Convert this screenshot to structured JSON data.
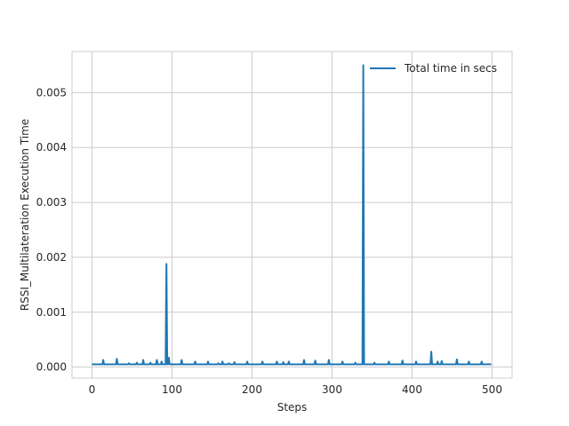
{
  "chart_data": {
    "type": "line",
    "title": "",
    "xlabel": "Steps",
    "ylabel": "RSSI_Multilateration Execution Time",
    "xlim": [
      -25,
      525
    ],
    "ylim": [
      -0.0002,
      0.00575
    ],
    "xticks": [
      0,
      100,
      200,
      300,
      400,
      500
    ],
    "xtick_labels": [
      "0",
      "100",
      "200",
      "300",
      "400",
      "500"
    ],
    "yticks": [
      0.0,
      0.001,
      0.002,
      0.003,
      0.004,
      0.005
    ],
    "ytick_labels": [
      "0.000",
      "0.001",
      "0.002",
      "0.003",
      "0.004",
      "0.005"
    ],
    "grid": true,
    "legend_position": "top-right",
    "colors": {
      "series": "#1f77b4",
      "grid": "#cccccc",
      "spine": "#cccccc"
    },
    "baseline": 5e-05,
    "n_points": 500,
    "spikes": [
      [
        14,
        0.00013
      ],
      [
        31,
        0.00015
      ],
      [
        46,
        7e-05
      ],
      [
        56,
        8e-05
      ],
      [
        64,
        0.00013
      ],
      [
        73,
        8e-05
      ],
      [
        81,
        0.00013
      ],
      [
        87,
        0.0001
      ],
      [
        93,
        0.00188
      ],
      [
        96,
        0.00017
      ],
      [
        112,
        0.00013
      ],
      [
        129,
        0.0001
      ],
      [
        145,
        0.0001
      ],
      [
        158,
        7e-05
      ],
      [
        163,
        0.0001
      ],
      [
        171,
        7e-05
      ],
      [
        178,
        9e-05
      ],
      [
        194,
        0.0001
      ],
      [
        213,
        0.0001
      ],
      [
        231,
        0.0001
      ],
      [
        239,
        9e-05
      ],
      [
        246,
        0.0001
      ],
      [
        265,
        0.00013
      ],
      [
        279,
        0.00012
      ],
      [
        296,
        0.00013
      ],
      [
        313,
        0.0001
      ],
      [
        329,
        8e-05
      ],
      [
        339,
        0.0055
      ],
      [
        353,
        8e-05
      ],
      [
        371,
        0.0001
      ],
      [
        388,
        0.00012
      ],
      [
        405,
        0.0001
      ],
      [
        424,
        0.00028
      ],
      [
        432,
        0.0001
      ],
      [
        437,
        0.00011
      ],
      [
        456,
        0.00014
      ],
      [
        471,
        0.0001
      ],
      [
        487,
        0.0001
      ]
    ],
    "series": [
      {
        "name": "Total time in secs",
        "color": "#1f77b4"
      }
    ]
  }
}
